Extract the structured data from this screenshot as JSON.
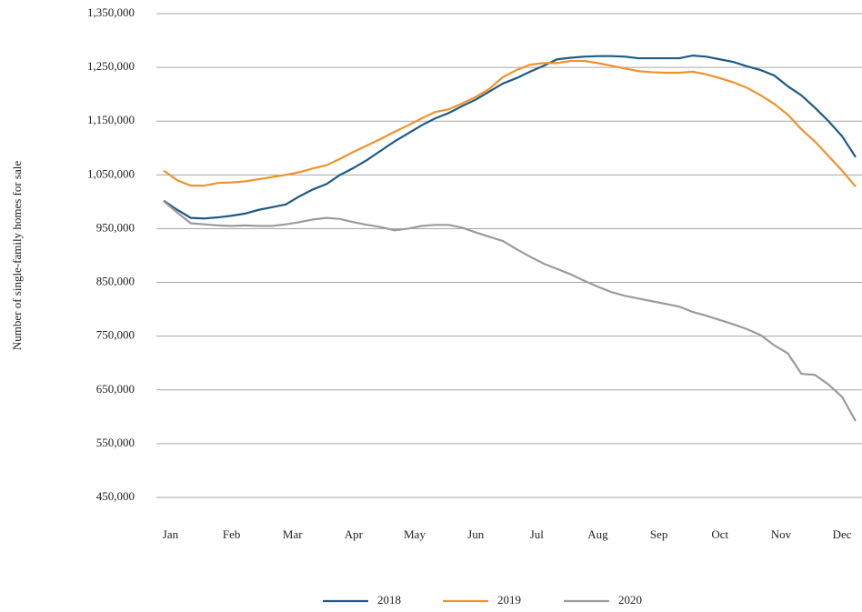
{
  "chart_data": {
    "type": "line",
    "y_label": "Number of single-family homes for sale",
    "x": [
      0,
      1,
      2,
      3,
      4,
      5,
      6,
      7,
      8,
      9,
      10,
      11,
      12,
      13,
      14,
      15,
      16,
      17,
      18,
      19,
      20,
      21,
      22,
      23,
      24,
      25,
      26,
      27,
      28,
      29,
      30,
      31,
      32,
      33,
      34,
      35,
      36,
      37,
      38,
      39,
      40,
      41,
      42,
      43,
      44,
      45,
      46,
      47,
      48,
      49,
      50,
      51
    ],
    "xlim": [
      0,
      51
    ],
    "xticks": [
      {
        "value": 0.5,
        "label": "Jan"
      },
      {
        "value": 5,
        "label": "Feb"
      },
      {
        "value": 9.5,
        "label": "Mar"
      },
      {
        "value": 14,
        "label": "Apr"
      },
      {
        "value": 18.5,
        "label": "May"
      },
      {
        "value": 23,
        "label": "Jun"
      },
      {
        "value": 27.5,
        "label": "Jul"
      },
      {
        "value": 32,
        "label": "Aug"
      },
      {
        "value": 36.5,
        "label": "Sep"
      },
      {
        "value": 41,
        "label": "Oct"
      },
      {
        "value": 45.5,
        "label": "Nov"
      },
      {
        "value": 50,
        "label": "Dec"
      }
    ],
    "ylim": [
      450000,
      1350000
    ],
    "yticks": [
      {
        "value": 450000,
        "label": "450,000"
      },
      {
        "value": 550000,
        "label": "550,000"
      },
      {
        "value": 650000,
        "label": "650,000"
      },
      {
        "value": 750000,
        "label": "750,000"
      },
      {
        "value": 850000,
        "label": "850,000"
      },
      {
        "value": 950000,
        "label": "950,000"
      },
      {
        "value": 1050000,
        "label": "1,050,000"
      },
      {
        "value": 1150000,
        "label": "1,150,000"
      },
      {
        "value": 1250000,
        "label": "1,250,000"
      },
      {
        "value": 1350000,
        "label": "1,350,000"
      }
    ],
    "grid": true,
    "series": [
      {
        "name": "2018",
        "color": "#1d5b85",
        "values": [
          1002000,
          985000,
          970000,
          969000,
          971000,
          974000,
          978000,
          985000,
          990000,
          995000,
          1010000,
          1023000,
          1033000,
          1050000,
          1063000,
          1078000,
          1095000,
          1112000,
          1127000,
          1142000,
          1155000,
          1165000,
          1178000,
          1190000,
          1205000,
          1220000,
          1230000,
          1242000,
          1253000,
          1265000,
          1268000,
          1270000,
          1271000,
          1271000,
          1270000,
          1267000,
          1267000,
          1267000,
          1267000,
          1272000,
          1270000,
          1265000,
          1260000,
          1252000,
          1245000,
          1235000,
          1215000,
          1198000,
          1175000,
          1150000,
          1122000,
          1083000
        ]
      },
      {
        "name": "2019",
        "color": "#f0922e",
        "values": [
          1058000,
          1040000,
          1030000,
          1030000,
          1035000,
          1036000,
          1038000,
          1042000,
          1046000,
          1050000,
          1055000,
          1062000,
          1068000,
          1080000,
          1093000,
          1105000,
          1117000,
          1130000,
          1142000,
          1155000,
          1167000,
          1172000,
          1183000,
          1195000,
          1210000,
          1232000,
          1245000,
          1255000,
          1258000,
          1258000,
          1262000,
          1262000,
          1258000,
          1253000,
          1248000,
          1243000,
          1241000,
          1240000,
          1240000,
          1242000,
          1237000,
          1230000,
          1222000,
          1212000,
          1198000,
          1182000,
          1162000,
          1135000,
          1112000,
          1085000,
          1058000,
          1028000
        ]
      },
      {
        "name": "2020",
        "color": "#9b9b9b",
        "values": [
          1001000,
          980000,
          960000,
          958000,
          956000,
          955000,
          956000,
          955000,
          955000,
          958000,
          962000,
          967000,
          970000,
          968000,
          962000,
          957000,
          953000,
          947000,
          950000,
          955000,
          957000,
          957000,
          952000,
          943000,
          935000,
          927000,
          912000,
          898000,
          885000,
          875000,
          865000,
          853000,
          842000,
          832000,
          825000,
          820000,
          815000,
          810000,
          805000,
          795000,
          788000,
          780000,
          772000,
          763000,
          752000,
          733000,
          718000,
          680000,
          678000,
          660000,
          637000,
          592000
        ]
      }
    ]
  }
}
